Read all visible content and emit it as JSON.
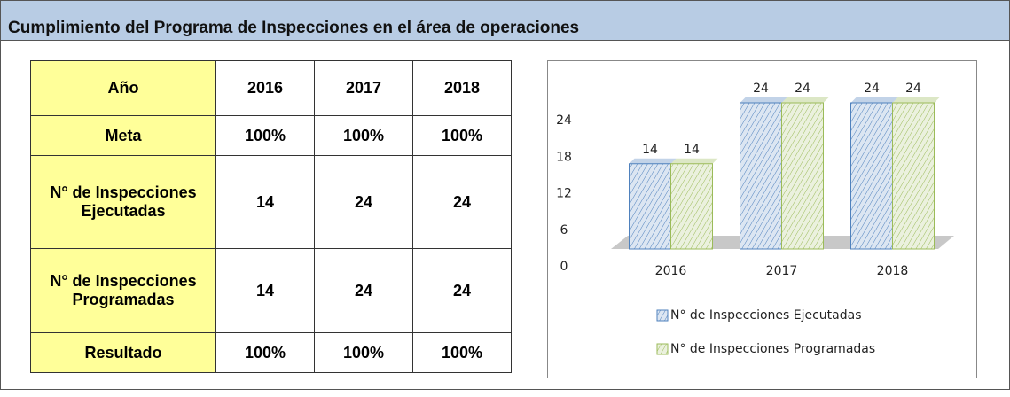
{
  "header": {
    "title": "Cumplimiento del Programa de Inspecciones en el área de operaciones"
  },
  "table": {
    "rows": [
      [
        "Año",
        "2016",
        "2017",
        "2018"
      ],
      [
        "Meta",
        "100%",
        "100%",
        "100%"
      ],
      [
        "N° de Inspecciones Ejecutadas",
        "14",
        "24",
        "24"
      ],
      [
        "N° de Inspecciones Programadas",
        "14",
        "24",
        "24"
      ],
      [
        "Resultado",
        "100%",
        "100%",
        "100%"
      ]
    ]
  },
  "chart_data": {
    "type": "bar",
    "categories": [
      "2016",
      "2017",
      "2018"
    ],
    "series": [
      {
        "name": "N° de Inspecciones Ejecutadas",
        "color": "#4f81bd",
        "values": [
          14,
          24,
          24
        ]
      },
      {
        "name": "N° de Inspecciones Programadas",
        "color": "#9bbb59",
        "values": [
          14,
          24,
          24
        ]
      }
    ],
    "ylim": [
      0,
      24
    ],
    "yticks": [
      0,
      6,
      12,
      18,
      24
    ],
    "legend": "bottom"
  }
}
